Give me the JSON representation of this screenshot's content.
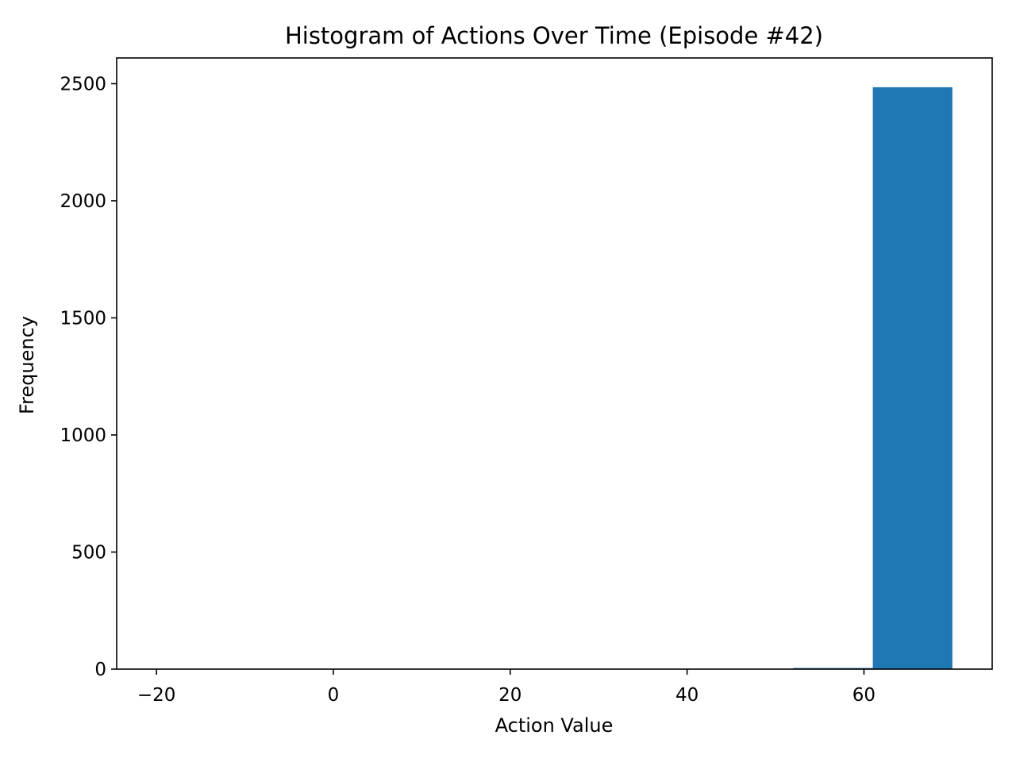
{
  "chart_data": {
    "type": "bar",
    "title": "Histogram of Actions Over Time (Episode #42)",
    "xlabel": "Action Value",
    "ylabel": "Frequency",
    "xlim": [
      -24.5,
      74.5
    ],
    "ylim": [
      0,
      2610
    ],
    "xticks": [
      -20,
      0,
      20,
      40,
      60
    ],
    "xtick_labels": [
      "−20",
      "0",
      "20",
      "40",
      "60"
    ],
    "yticks": [
      0,
      500,
      1000,
      1500,
      2000,
      2500
    ],
    "ytick_labels": [
      "0",
      "500",
      "1000",
      "1500",
      "2000",
      "2500"
    ],
    "bins": [
      {
        "x0": -20.0,
        "x1": -11.0,
        "count": 0
      },
      {
        "x0": -11.0,
        "x1": -2.0,
        "count": 0
      },
      {
        "x0": -2.0,
        "x1": 7.0,
        "count": 0
      },
      {
        "x0": 7.0,
        "x1": 16.0,
        "count": 0
      },
      {
        "x0": 16.0,
        "x1": 25.0,
        "count": 0
      },
      {
        "x0": 25.0,
        "x1": 34.0,
        "count": 0
      },
      {
        "x0": 34.0,
        "x1": 43.0,
        "count": 0
      },
      {
        "x0": 43.0,
        "x1": 52.0,
        "count": 0
      },
      {
        "x0": 52.0,
        "x1": 61.0,
        "count": 5
      },
      {
        "x0": 61.0,
        "x1": 70.0,
        "count": 2485
      }
    ],
    "bar_color": "#1f77b4",
    "grid": false,
    "legend": "none"
  }
}
